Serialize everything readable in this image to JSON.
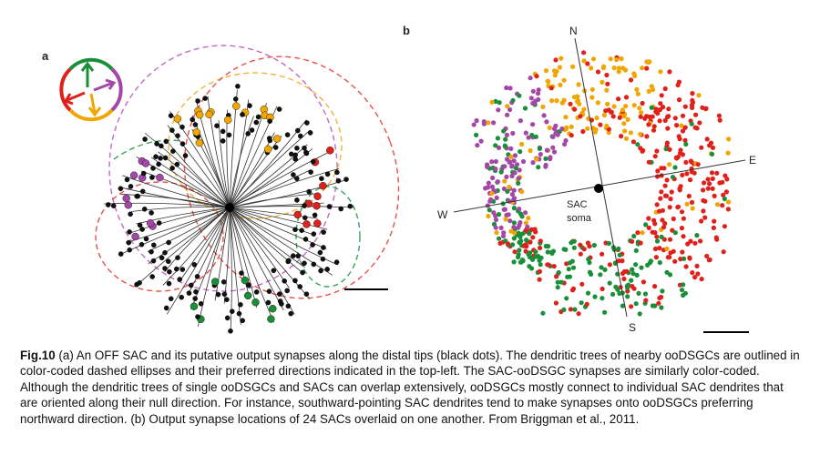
{
  "panel_a": {
    "label": "a"
  },
  "panel_b": {
    "label": "b",
    "north": "N",
    "east": "E",
    "south": "S",
    "west": "W",
    "soma_label": [
      "SAC",
      "soma"
    ]
  },
  "caption": {
    "label": "Fig.10",
    "text": " (a) An OFF SAC and its putative output synapses along the distal tips (black dots). The dendritic trees of nearby ooDSGCs are outlined in color-coded dashed ellipses and their preferred directions indicated in the top-left. The SAC-ooDSGC synapses are similarly color-coded. Although the dendritic trees of single ooDSGCs and SACs can overlap extensively, ooDSGCs mostly connect to individual SAC dendrites that are oriented along their null direction. For instance, southward-pointing SAC dendrites tend to make synapses onto ooDSGCs preferring northward direction. (b) Output synapse locations of 24 SACs overlaid on one another. From Briggman et al., 2011."
  }
}
